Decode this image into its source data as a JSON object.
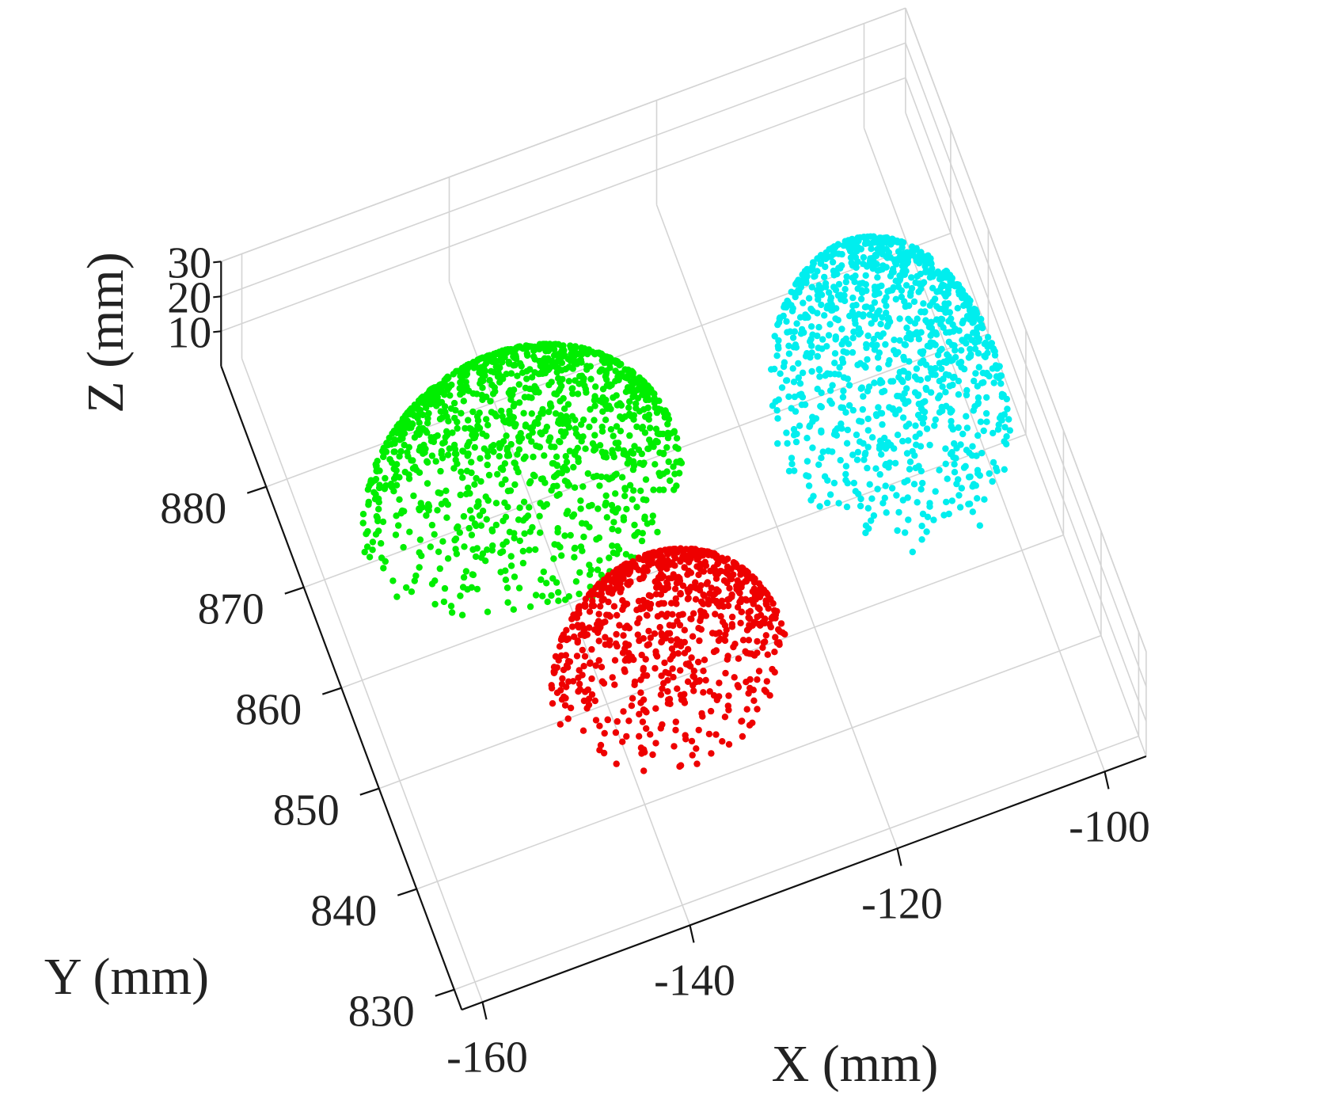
{
  "chart_data": {
    "type": "scatter",
    "title": "",
    "projection": "3d",
    "x": {
      "label": "X (mm)",
      "ticks": [
        -160,
        -140,
        -120,
        -100
      ],
      "range": [
        -162,
        -96
      ]
    },
    "y": {
      "label": "Y (mm)",
      "ticks": [
        830,
        840,
        850,
        860,
        870,
        880
      ],
      "range": [
        828,
        892
      ]
    },
    "z": {
      "label": "Z (mm)",
      "ticks": [
        10,
        20,
        30
      ],
      "range": [
        0,
        30
      ]
    },
    "grid": true,
    "legend": "none",
    "series": [
      {
        "color": "#00ee00",
        "shape": "dome",
        "center": [
          -141,
          870
        ],
        "radii": [
          15,
          11
        ],
        "z_peak": 30,
        "points": 1300
      },
      {
        "color": "#00eeee",
        "shape": "dome",
        "center": [
          -107,
          866
        ],
        "radii": [
          10.5,
          14
        ],
        "z_peak": 30,
        "points": 1100
      },
      {
        "color": "#ee0000",
        "shape": "dome",
        "center": [
          -134,
          850
        ],
        "radii": [
          11,
          9
        ],
        "z_peak": 25,
        "points": 850
      }
    ]
  }
}
